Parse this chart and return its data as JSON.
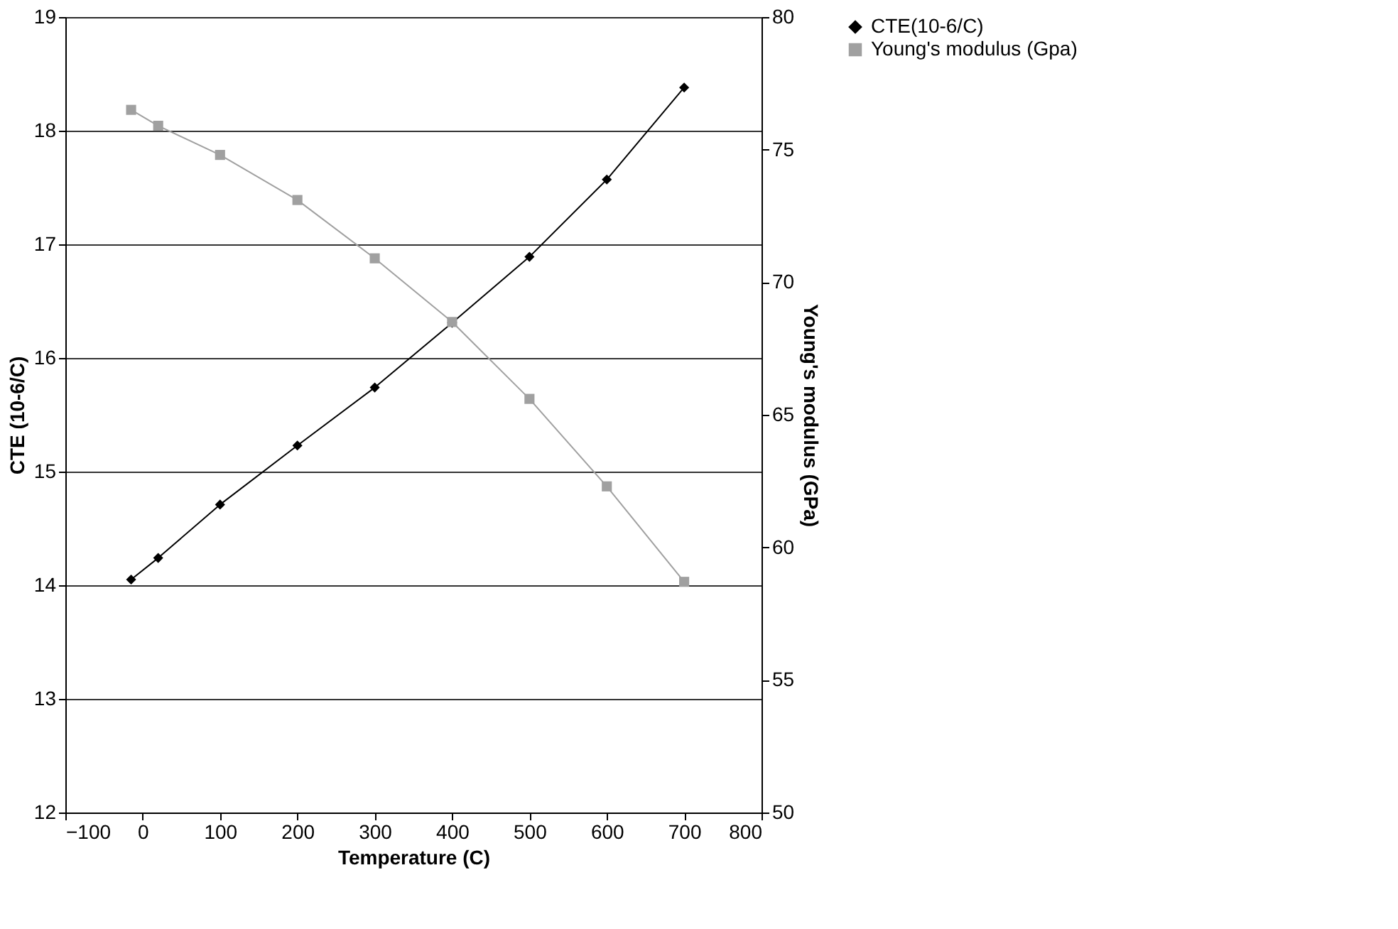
{
  "chart_data": {
    "type": "line",
    "xlabel": "Temperature (C)",
    "ylabel": "CTE (10-6/C)",
    "y2label": "Young's modulus (GPa)",
    "x": [
      -15,
      20,
      100,
      200,
      300,
      400,
      500,
      600,
      700
    ],
    "series": [
      {
        "name": "CTE(10-6/C)",
        "color": "#000000",
        "marker": "diamond",
        "values": [
          14.05,
          14.24,
          14.71,
          15.23,
          15.74,
          16.31,
          16.89,
          17.57,
          18.38
        ]
      },
      {
        "name": "Young's modulus (Gpa)",
        "color": "#a0a0a0",
        "marker": "square",
        "axis": "y2",
        "values": [
          76.5,
          75.9,
          74.8,
          73.1,
          70.9,
          68.5,
          65.6,
          62.3,
          58.7
        ]
      }
    ],
    "xlim": [
      -100,
      800
    ],
    "xticks": [
      -100,
      0,
      100,
      200,
      300,
      400,
      500,
      600,
      700,
      800
    ],
    "ylim": [
      12,
      19
    ],
    "yticks": [
      12,
      13,
      14,
      15,
      16,
      17,
      18,
      19
    ],
    "y2lim": [
      50,
      80
    ],
    "y2ticks": [
      50,
      55,
      60,
      65,
      70,
      75,
      80
    ],
    "grid": "y",
    "legend": "right",
    "line_style": "solid"
  }
}
